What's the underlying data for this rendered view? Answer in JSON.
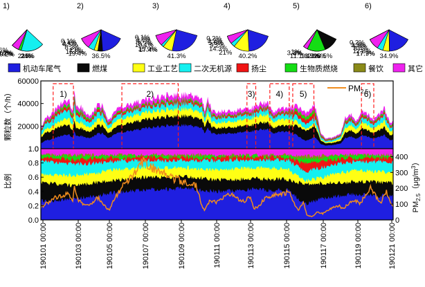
{
  "chart_data": {
    "type": "area",
    "title": "",
    "sources": [
      {
        "name": "机动车尾气",
        "color": "#1f1fe0"
      },
      {
        "name": "燃煤",
        "color": "#0a0a0a"
      },
      {
        "name": "工业工艺",
        "color": "#ffff14"
      },
      {
        "name": "二次无机源",
        "color": "#14f0f0"
      },
      {
        "name": "扬尘",
        "color": "#f01414"
      },
      {
        "name": "生物质燃烧",
        "color": "#14dd14"
      },
      {
        "name": "餐饮",
        "color": "#8a8a18"
      },
      {
        "name": "其它",
        "color": "#ee22ee"
      }
    ],
    "pies": [
      {
        "label": "1)",
        "values": [
          24,
          21,
          9.2,
          25,
          6.7,
          7.7,
          0.36,
          5.6
        ],
        "labels": [
          "24%",
          "21%",
          "9.2%",
          "25%",
          "6.7%",
          "7.7%",
          "0.36%",
          "5.6%"
        ]
      },
      {
        "label": "2)",
        "values": [
          36.5,
          19.4,
          15.8,
          13,
          4.5,
          2.4,
          0.1,
          8.3
        ],
        "labels": [
          "36.5%",
          "19.4%",
          "15.8%",
          "13%",
          "4.5%",
          "2.4%",
          "0.1%",
          "8.3%"
        ]
      },
      {
        "label": "3)",
        "values": [
          41.3,
          15.9,
          17.4,
          10.1,
          4.7,
          2.2,
          0.1,
          8.2
        ],
        "labels": [
          "41.3%",
          "15.9%",
          "17.4%",
          "10.1%",
          "4.7%",
          "2.2%",
          "0.1%",
          "8.2%"
        ]
      },
      {
        "label": "4)",
        "values": [
          40.2,
          14.3,
          21,
          9.2,
          5.8,
          3.2,
          0.2,
          6
        ],
        "labels": [
          "40.2%",
          "14.3%",
          "21%",
          "9.2%",
          "5.8%",
          "3.2%",
          "0.2%",
          "6%"
        ]
      },
      {
        "label": "5)",
        "values": [
          21.5,
          28.5,
          4,
          13.5,
          11.1,
          17,
          1,
          3.3
        ],
        "labels": [
          "21.5%",
          "28.5%",
          "4%",
          "13.5%",
          "11.1%",
          "17%",
          "1%",
          "3.3%"
        ]
      },
      {
        "label": "6)",
        "values": [
          34.9,
          17.9,
          17.7,
          12.8,
          4.9,
          3.3,
          0.2,
          8.4
        ],
        "labels": [
          "34.9%",
          "17.9%",
          "17.7%",
          "12.8%",
          "4.9%",
          "3.3%",
          "0.2%",
          "8.4%"
        ]
      }
    ],
    "x_ticks": [
      "190101 00:00",
      "190103 00:00",
      "190105 00:00",
      "190107 00:00",
      "190109 00:00",
      "190111 00:00",
      "190113 00:00",
      "190115 00:00",
      "190117 00:00",
      "190119 00:00",
      "190121 00:00"
    ],
    "x_range": [
      0,
      20
    ],
    "top": {
      "ylabel": "颗粒数（个/h）",
      "ylim": [
        0,
        60000
      ],
      "yticks": [
        0,
        20000,
        40000,
        60000
      ],
      "ytick_labels": [
        "0",
        "20000",
        "40000",
        "60000"
      ],
      "total_series": [
        [
          0,
          18000
        ],
        [
          0.3,
          28000
        ],
        [
          0.7,
          31000
        ],
        [
          1.0,
          38000
        ],
        [
          1.3,
          42000
        ],
        [
          1.6,
          44000
        ],
        [
          1.8,
          33000
        ],
        [
          1.9,
          52000
        ],
        [
          2.0,
          38000
        ],
        [
          2.3,
          37000
        ],
        [
          2.6,
          30000
        ],
        [
          2.9,
          31000
        ],
        [
          3.2,
          38000
        ],
        [
          3.5,
          38000
        ],
        [
          3.8,
          26000
        ],
        [
          4.0,
          28000
        ],
        [
          4.2,
          33000
        ],
        [
          4.4,
          36000
        ],
        [
          4.8,
          38000
        ],
        [
          5.2,
          40000
        ],
        [
          5.5,
          41000
        ],
        [
          5.8,
          43000
        ],
        [
          6.2,
          44000
        ],
        [
          6.6,
          45000
        ],
        [
          7.0,
          47000
        ],
        [
          7.4,
          47000
        ],
        [
          7.8,
          48000
        ],
        [
          8.2,
          48000
        ],
        [
          8.6,
          47000
        ],
        [
          9.0,
          46000
        ],
        [
          9.2,
          42000
        ],
        [
          9.3,
          31000
        ],
        [
          9.5,
          45000
        ],
        [
          9.7,
          34000
        ],
        [
          10.0,
          33000
        ],
        [
          10.5,
          33000
        ],
        [
          11.0,
          33500
        ],
        [
          11.5,
          35000
        ],
        [
          12.0,
          36000
        ],
        [
          12.5,
          40000
        ],
        [
          12.9,
          41000
        ],
        [
          13.2,
          31000
        ],
        [
          13.5,
          35000
        ],
        [
          13.8,
          35500
        ],
        [
          14.2,
          37000
        ],
        [
          14.6,
          38000
        ],
        [
          14.9,
          32000
        ],
        [
          15.1,
          33000
        ],
        [
          15.3,
          37000
        ],
        [
          15.5,
          40000
        ],
        [
          15.7,
          30000
        ],
        [
          15.9,
          14000
        ],
        [
          16.2,
          9000
        ],
        [
          16.6,
          10000
        ],
        [
          17.0,
          13000
        ],
        [
          17.3,
          28000
        ],
        [
          17.6,
          31000
        ],
        [
          17.9,
          23000
        ],
        [
          18.2,
          34000
        ],
        [
          18.6,
          30000
        ],
        [
          18.9,
          26000
        ],
        [
          19.2,
          31000
        ],
        [
          19.5,
          36000
        ],
        [
          19.8,
          23000
        ],
        [
          20,
          24000
        ]
      ],
      "boxes": [
        {
          "label": "1)",
          "x": [
            0.7,
            1.85
          ]
        },
        {
          "label": "2)",
          "x": [
            4.6,
            7.8
          ]
        },
        {
          "label": "3)",
          "x": [
            11.7,
            12.2
          ]
        },
        {
          "label": "4)",
          "x": [
            13.0,
            14.1
          ]
        },
        {
          "label": "5)",
          "x": [
            14.3,
            15.5
          ]
        },
        {
          "label": "6)",
          "x": [
            18.2,
            18.9
          ]
        }
      ]
    },
    "bottom": {
      "ylabel": "比例",
      "ylim": [
        0,
        1.0
      ],
      "yticks": [
        0.0,
        0.2,
        0.4,
        0.6,
        0.8,
        1.0
      ],
      "ytick_labels": [
        "0.0",
        "0.2",
        "0.4",
        "0.6",
        "0.8",
        "1.0"
      ],
      "y2label": "PM2.5（μg/m3）",
      "y2lim": [
        0,
        450
      ],
      "y2ticks": [
        0,
        100,
        200,
        300,
        400
      ],
      "y2tick_labels": [
        "0",
        "100",
        "200",
        "300",
        "400"
      ],
      "fraction_bounds": [
        [
          0,
          0.26,
          0.53,
          0.64,
          0.82,
          0.87,
          0.9,
          0.91
        ],
        [
          1,
          0.28,
          0.5,
          0.62,
          0.8,
          0.86,
          0.9,
          0.91
        ],
        [
          2,
          0.3,
          0.48,
          0.63,
          0.78,
          0.84,
          0.9,
          0.91
        ],
        [
          3,
          0.33,
          0.52,
          0.65,
          0.8,
          0.86,
          0.9,
          0.91
        ],
        [
          4,
          0.38,
          0.55,
          0.7,
          0.82,
          0.87,
          0.9,
          0.91
        ],
        [
          5,
          0.4,
          0.58,
          0.72,
          0.83,
          0.87,
          0.9,
          0.91
        ],
        [
          6,
          0.42,
          0.6,
          0.74,
          0.84,
          0.88,
          0.9,
          0.91
        ],
        [
          7,
          0.43,
          0.6,
          0.73,
          0.83,
          0.87,
          0.9,
          0.91
        ],
        [
          8,
          0.44,
          0.61,
          0.74,
          0.84,
          0.88,
          0.9,
          0.91
        ],
        [
          9,
          0.42,
          0.59,
          0.72,
          0.83,
          0.87,
          0.9,
          0.91
        ],
        [
          10,
          0.4,
          0.56,
          0.7,
          0.83,
          0.87,
          0.9,
          0.91
        ],
        [
          11,
          0.41,
          0.57,
          0.72,
          0.84,
          0.88,
          0.9,
          0.91
        ],
        [
          12,
          0.43,
          0.58,
          0.74,
          0.84,
          0.88,
          0.9,
          0.91
        ],
        [
          13,
          0.42,
          0.57,
          0.73,
          0.84,
          0.88,
          0.9,
          0.91
        ],
        [
          14,
          0.42,
          0.57,
          0.72,
          0.84,
          0.88,
          0.9,
          0.91
        ],
        [
          15,
          0.22,
          0.5,
          0.55,
          0.68,
          0.79,
          0.86,
          0.89
        ],
        [
          16,
          0.3,
          0.52,
          0.6,
          0.74,
          0.83,
          0.88,
          0.9
        ],
        [
          17,
          0.34,
          0.52,
          0.66,
          0.8,
          0.86,
          0.9,
          0.91
        ],
        [
          18,
          0.36,
          0.54,
          0.7,
          0.82,
          0.87,
          0.9,
          0.91
        ],
        [
          19,
          0.34,
          0.53,
          0.68,
          0.82,
          0.87,
          0.9,
          0.91
        ],
        [
          20,
          0.33,
          0.52,
          0.67,
          0.81,
          0.86,
          0.9,
          0.91
        ]
      ],
      "pm25_series": [
        [
          0,
          80
        ],
        [
          0.4,
          110
        ],
        [
          0.8,
          140
        ],
        [
          1.2,
          150
        ],
        [
          1.5,
          165
        ],
        [
          1.8,
          120
        ],
        [
          1.9,
          200
        ],
        [
          2.1,
          130
        ],
        [
          2.4,
          100
        ],
        [
          2.7,
          90
        ],
        [
          3.0,
          120
        ],
        [
          3.3,
          140
        ],
        [
          3.6,
          90
        ],
        [
          3.9,
          60
        ],
        [
          4.2,
          140
        ],
        [
          4.5,
          190
        ],
        [
          4.8,
          230
        ],
        [
          5.1,
          260
        ],
        [
          5.4,
          300
        ],
        [
          5.7,
          360
        ],
        [
          5.9,
          380
        ],
        [
          6.1,
          320
        ],
        [
          6.4,
          330
        ],
        [
          6.7,
          300
        ],
        [
          7.0,
          290
        ],
        [
          7.3,
          270
        ],
        [
          7.6,
          260
        ],
        [
          7.9,
          250
        ],
        [
          8.2,
          240
        ],
        [
          8.5,
          230
        ],
        [
          8.8,
          220
        ],
        [
          9.0,
          170
        ],
        [
          9.1,
          90
        ],
        [
          9.3,
          60
        ],
        [
          9.6,
          120
        ],
        [
          10.0,
          110
        ],
        [
          10.4,
          150
        ],
        [
          10.8,
          160
        ],
        [
          11.2,
          130
        ],
        [
          11.6,
          120
        ],
        [
          11.9,
          150
        ],
        [
          12.1,
          70
        ],
        [
          12.4,
          90
        ],
        [
          12.8,
          150
        ],
        [
          13.1,
          150
        ],
        [
          13.4,
          170
        ],
        [
          13.8,
          160
        ],
        [
          14.1,
          190
        ],
        [
          14.4,
          100
        ],
        [
          14.6,
          60
        ],
        [
          14.9,
          110
        ],
        [
          15.1,
          30
        ],
        [
          15.4,
          20
        ],
        [
          15.7,
          50
        ],
        [
          16.0,
          40
        ],
        [
          16.3,
          60
        ],
        [
          16.6,
          80
        ],
        [
          16.9,
          90
        ],
        [
          17.2,
          70
        ],
        [
          17.5,
          110
        ],
        [
          17.8,
          130
        ],
        [
          18.1,
          100
        ],
        [
          18.4,
          150
        ],
        [
          18.7,
          200
        ],
        [
          19.0,
          150
        ],
        [
          19.3,
          110
        ],
        [
          19.6,
          180
        ],
        [
          19.8,
          120
        ],
        [
          20,
          90
        ]
      ],
      "pm25_legend": "PM2.5"
    }
  }
}
